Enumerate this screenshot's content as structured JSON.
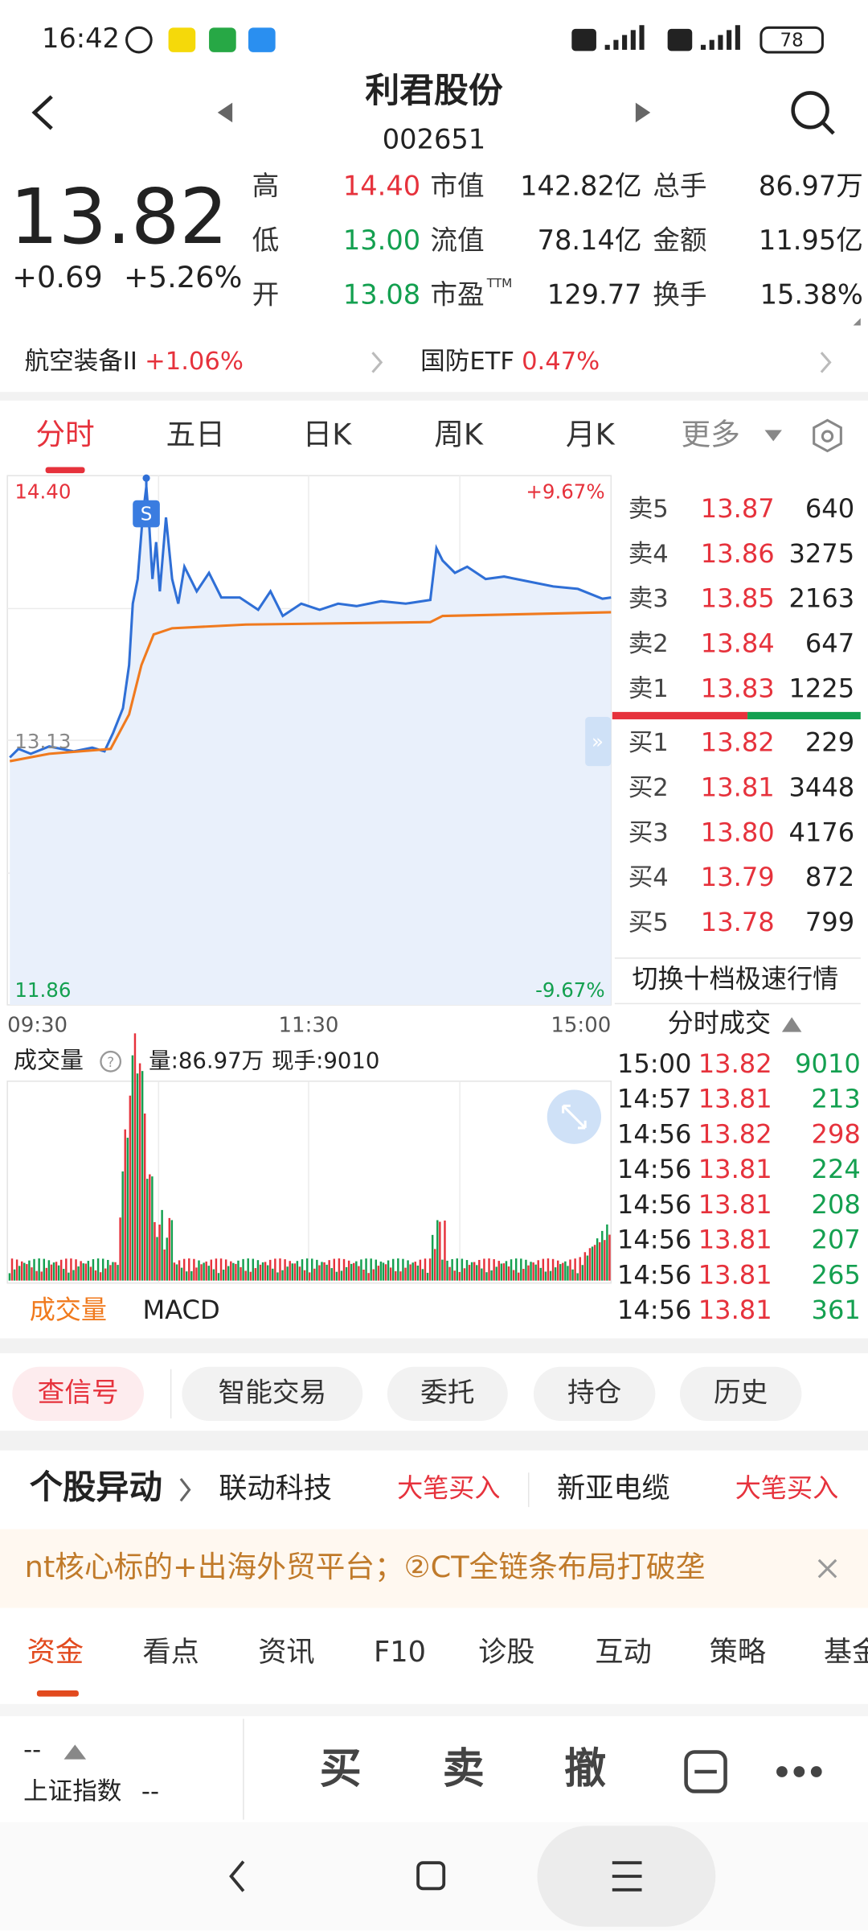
{
  "status": {
    "time": "16:42",
    "battery": "78"
  },
  "header": {
    "name": "利君股份",
    "code": "002651"
  },
  "quote": {
    "price": "13.82",
    "change": "+0.69",
    "percent": "+5.26%",
    "stats": [
      [
        {
          "label": "高",
          "value": "14.40",
          "color": "#e6323c"
        },
        {
          "label": "市值",
          "value": "142.82亿"
        },
        {
          "label": "总手",
          "value": "86.97万"
        }
      ],
      [
        {
          "label": "低",
          "value": "13.00",
          "color": "#14a050"
        },
        {
          "label": "流值",
          "value": "78.14亿"
        },
        {
          "label": "金额",
          "value": "11.95亿"
        }
      ],
      [
        {
          "label": "开",
          "value": "13.08",
          "color": "#14a050"
        },
        {
          "label": "市盈",
          "sup": "TTM",
          "value": "129.77"
        },
        {
          "label": "换手",
          "value": "15.38%"
        }
      ]
    ]
  },
  "sectors": [
    {
      "name": "航空装备II",
      "change": "+1.06%"
    },
    {
      "name": "国防ETF",
      "change": "0.47%"
    }
  ],
  "tabs": [
    "分时",
    "五日",
    "日K",
    "周K",
    "月K",
    "更多"
  ],
  "intraday": {
    "price_high": "14.40",
    "price_mid": "13.13",
    "price_low": "11.86",
    "pct_high": "+9.67%",
    "pct_low": "-9.67%",
    "times": [
      "09:30",
      "11:30",
      "15:00"
    ],
    "marker": "S"
  },
  "order_book": {
    "asks": [
      [
        "卖5",
        "13.87",
        "640"
      ],
      [
        "卖4",
        "13.86",
        "3275"
      ],
      [
        "卖3",
        "13.85",
        "2163"
      ],
      [
        "卖2",
        "13.84",
        "647"
      ],
      [
        "卖1",
        "13.83",
        "1225"
      ]
    ],
    "bids": [
      [
        "买1",
        "13.82",
        "229"
      ],
      [
        "买2",
        "13.81",
        "3448"
      ],
      [
        "买3",
        "13.80",
        "4176"
      ],
      [
        "买4",
        "13.79",
        "872"
      ],
      [
        "买5",
        "13.78",
        "799"
      ]
    ],
    "toggle": "切换十档极速行情",
    "trades_title": "分时成交",
    "trades": [
      {
        "time": "15:00",
        "price": "13.82",
        "volume": "9010",
        "color": "#14a050"
      },
      {
        "time": "14:57",
        "price": "13.81",
        "volume": "213",
        "color": "#14a050"
      },
      {
        "time": "14:56",
        "price": "13.82",
        "volume": "298",
        "color": "#e6323c"
      },
      {
        "time": "14:56",
        "price": "13.81",
        "volume": "224",
        "color": "#14a050"
      },
      {
        "time": "14:56",
        "price": "13.81",
        "volume": "208",
        "color": "#14a050"
      },
      {
        "time": "14:56",
        "price": "13.81",
        "volume": "207",
        "color": "#14a050"
      },
      {
        "time": "14:56",
        "price": "13.81",
        "volume": "265",
        "color": "#14a050"
      },
      {
        "time": "14:56",
        "price": "13.81",
        "volume": "361",
        "color": "#14a050"
      }
    ]
  },
  "volume": {
    "label": "成交量",
    "total": "量:86.97万",
    "current": "现手:9010",
    "tabs": [
      "成交量",
      "MACD"
    ]
  },
  "actions": [
    "查信号",
    "智能交易",
    "委托",
    "持仓",
    "历史"
  ],
  "alerts": {
    "title": "个股异动",
    "items": [
      {
        "name": "联动科技",
        "tag": "大笔买入"
      },
      {
        "name": "新亚电缆",
        "tag": "大笔买入"
      }
    ]
  },
  "news": "nt核心标的+出海外贸平台；②CT全链条布局打破垄",
  "bottom_tabs": [
    "资金",
    "看点",
    "资讯",
    "F10",
    "诊股",
    "互动",
    "策略",
    "基金"
  ],
  "footer": {
    "index_value": "--",
    "index_name": "上证指数",
    "index_change": "--",
    "buttons": [
      "买",
      "卖",
      "撤"
    ]
  }
}
